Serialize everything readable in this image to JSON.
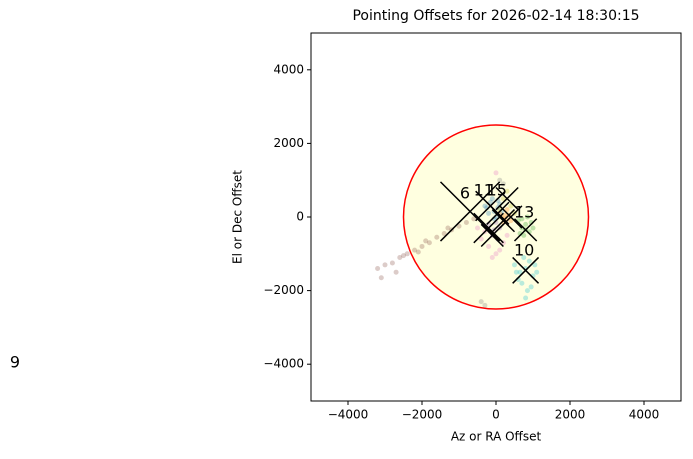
{
  "chart_data": {
    "type": "scatter",
    "title": "Pointing Offsets for 2026-02-14 18:30:15",
    "xlabel": "Az or RA Offset",
    "ylabel": "El or Dec Offset",
    "xlim": [
      -5000,
      5000
    ],
    "ylim": [
      -5000,
      5000
    ],
    "xticks": [
      {
        "value": -4000,
        "label": "−4000"
      },
      {
        "value": -2000,
        "label": "−2000"
      },
      0,
      2000,
      4000
    ],
    "yticks": [
      {
        "value": -4000,
        "label": "−4000"
      },
      {
        "value": -2000,
        "label": "−2000"
      },
      0,
      2000,
      4000
    ],
    "circle": {
      "x": 0,
      "y": 0,
      "r": 2500,
      "color": "#ff0000",
      "fill": "#ffffe0"
    },
    "series": [
      {
        "color": "#1f77b4",
        "x": [
          -300,
          -150,
          -50,
          50,
          -200,
          100,
          -100,
          0,
          -250,
          150,
          -50,
          50
        ],
        "y": [
          300,
          400,
          150,
          250,
          100,
          350,
          500,
          0,
          250,
          150,
          -50,
          450
        ]
      },
      {
        "color": "#ff7f0e",
        "x": [
          100,
          250,
          350,
          200,
          150,
          300,
          400,
          250
        ],
        "y": [
          100,
          -50,
          50,
          -150,
          0,
          200,
          -100,
          50
        ]
      },
      {
        "color": "#2ca02c",
        "x": [
          600,
          700,
          800,
          900,
          1000,
          750,
          850,
          650,
          950,
          800,
          700
        ],
        "y": [
          -100,
          -300,
          -200,
          -400,
          -300,
          -500,
          0,
          -450,
          -150,
          -350,
          -50
        ]
      },
      {
        "color": "#9467bd",
        "x": [
          -200,
          -50,
          100,
          -100,
          0,
          -150,
          50
        ],
        "y": [
          -200,
          -350,
          -300,
          -500,
          -150,
          -400,
          -600
        ]
      },
      {
        "color": "#8c564b",
        "x": [
          -3200,
          -3000,
          -2800,
          -2600,
          -2400,
          -2200,
          -2000,
          -1800,
          -1600,
          -1400,
          -1200,
          -1000,
          -800,
          -600,
          -3100,
          -2500,
          -1900,
          -1300,
          -2700,
          -2100
        ],
        "y": [
          -1400,
          -1300,
          -1250,
          -1100,
          -1000,
          -900,
          -800,
          -700,
          -550,
          -450,
          -350,
          -250,
          -150,
          -50,
          -1650,
          -1050,
          -650,
          -300,
          -1500,
          -950
        ]
      },
      {
        "color": "#e377c2",
        "x": [
          -400,
          -200,
          0,
          200,
          -300,
          100,
          -100,
          300,
          -500,
          0
        ],
        "y": [
          -600,
          -800,
          -1000,
          -700,
          -400,
          -900,
          -1100,
          -500,
          -300,
          1200
        ]
      },
      {
        "color": "#bcbd22",
        "x": [
          200,
          400,
          300,
          500,
          100
        ],
        "y": [
          500,
          300,
          700,
          100,
          200
        ]
      },
      {
        "color": "#17becf",
        "x": [
          500,
          650,
          800,
          900,
          1000,
          1100,
          700,
          850,
          950,
          600,
          750,
          1050,
          800,
          550
        ],
        "y": [
          -1300,
          -1500,
          -1400,
          -1200,
          -1600,
          -1500,
          -1800,
          -2000,
          -1900,
          -1700,
          -1100,
          -1300,
          -2200,
          -1500
        ]
      },
      {
        "color": "#7f7f7f",
        "x": [
          -400,
          -300,
          200,
          100
        ],
        "y": [
          -2300,
          -2400,
          900,
          1000
        ]
      }
    ],
    "crosses": {
      "color": "#000000",
      "x": [
        -700,
        -150,
        50,
        200,
        400,
        800,
        800,
        -200,
        -100,
        300
      ],
      "y": [
        150,
        300,
        100,
        -100,
        0,
        -350,
        -1450,
        -300,
        -500,
        500
      ],
      "size": [
        800,
        400,
        300,
        300,
        300,
        300,
        350,
        400,
        300,
        300
      ]
    },
    "annotations": [
      {
        "text": "6",
        "x": -840,
        "y": 630
      },
      {
        "text": "11",
        "x": -330,
        "y": 710
      },
      {
        "text": "15",
        "x": 20,
        "y": 710
      },
      {
        "text": "13",
        "x": 760,
        "y": 110
      },
      {
        "text": "10",
        "x": 760,
        "y": -920
      },
      {
        "text": "9",
        "x": -13000,
        "y": -3970
      }
    ]
  }
}
